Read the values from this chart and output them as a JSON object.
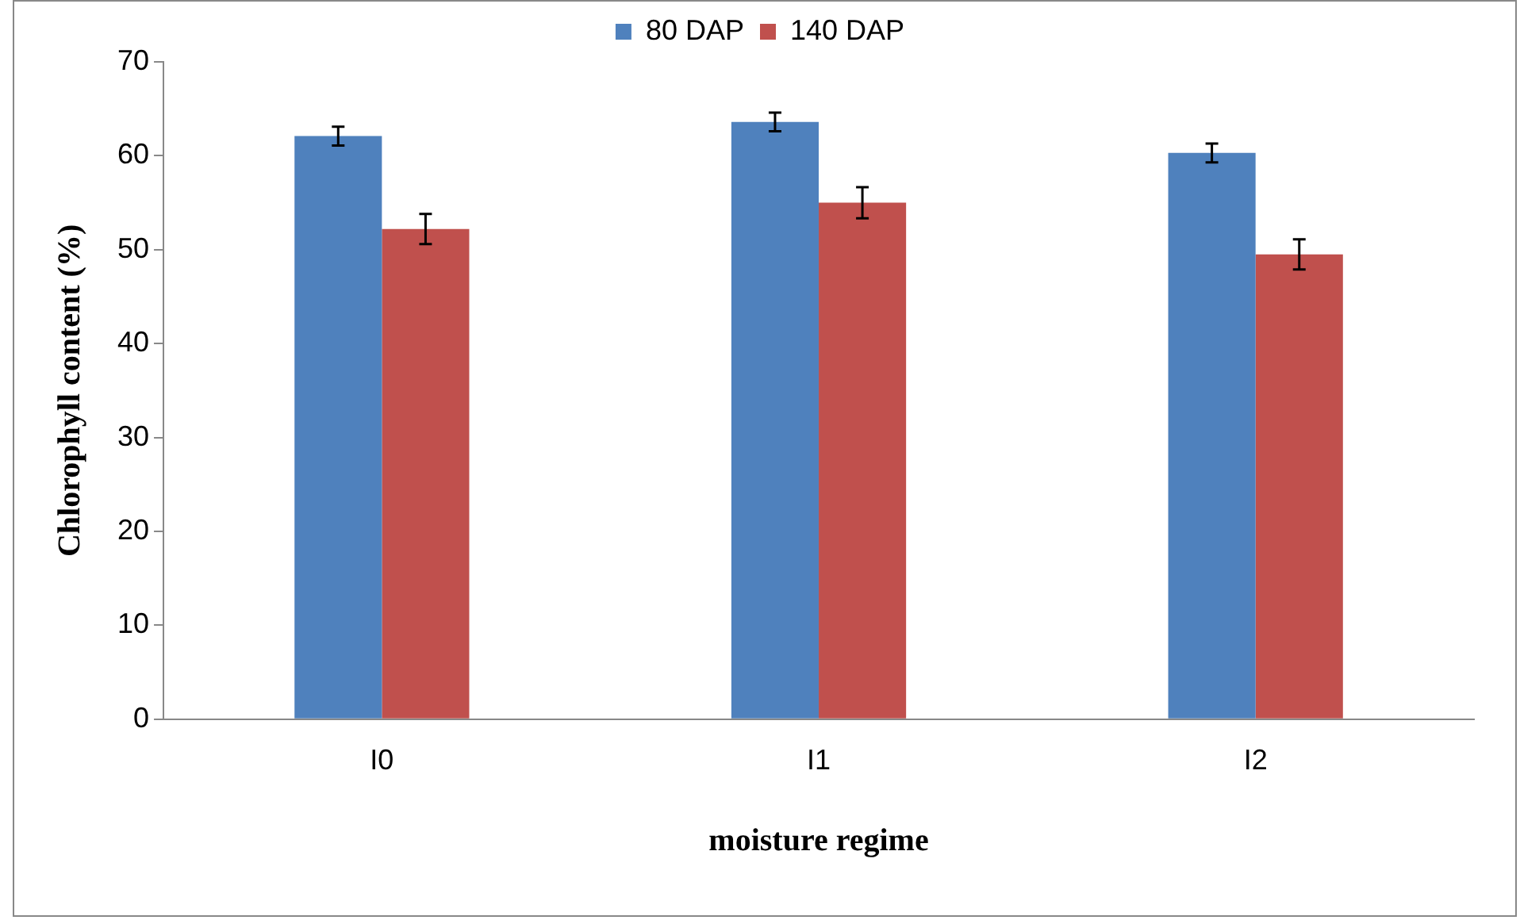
{
  "chart_data": {
    "type": "bar",
    "xlabel": "moisture regime",
    "ylabel": "Chlorophyll content (%)",
    "categories": [
      "I0",
      "I1",
      "I2"
    ],
    "series": [
      {
        "name": "80 DAP",
        "color": "#4f81bd",
        "values": [
          62.1,
          63.6,
          60.3
        ],
        "errors": [
          1.0,
          1.0,
          1.0
        ]
      },
      {
        "name": "140 DAP",
        "color": "#c0504d",
        "values": [
          52.2,
          55.0,
          49.5
        ],
        "errors": [
          1.6,
          1.65,
          1.6
        ]
      }
    ],
    "ylim": [
      0,
      70
    ],
    "yticks": [
      0,
      10,
      20,
      30,
      40,
      50,
      60,
      70
    ],
    "grid": false,
    "legend": "top"
  }
}
